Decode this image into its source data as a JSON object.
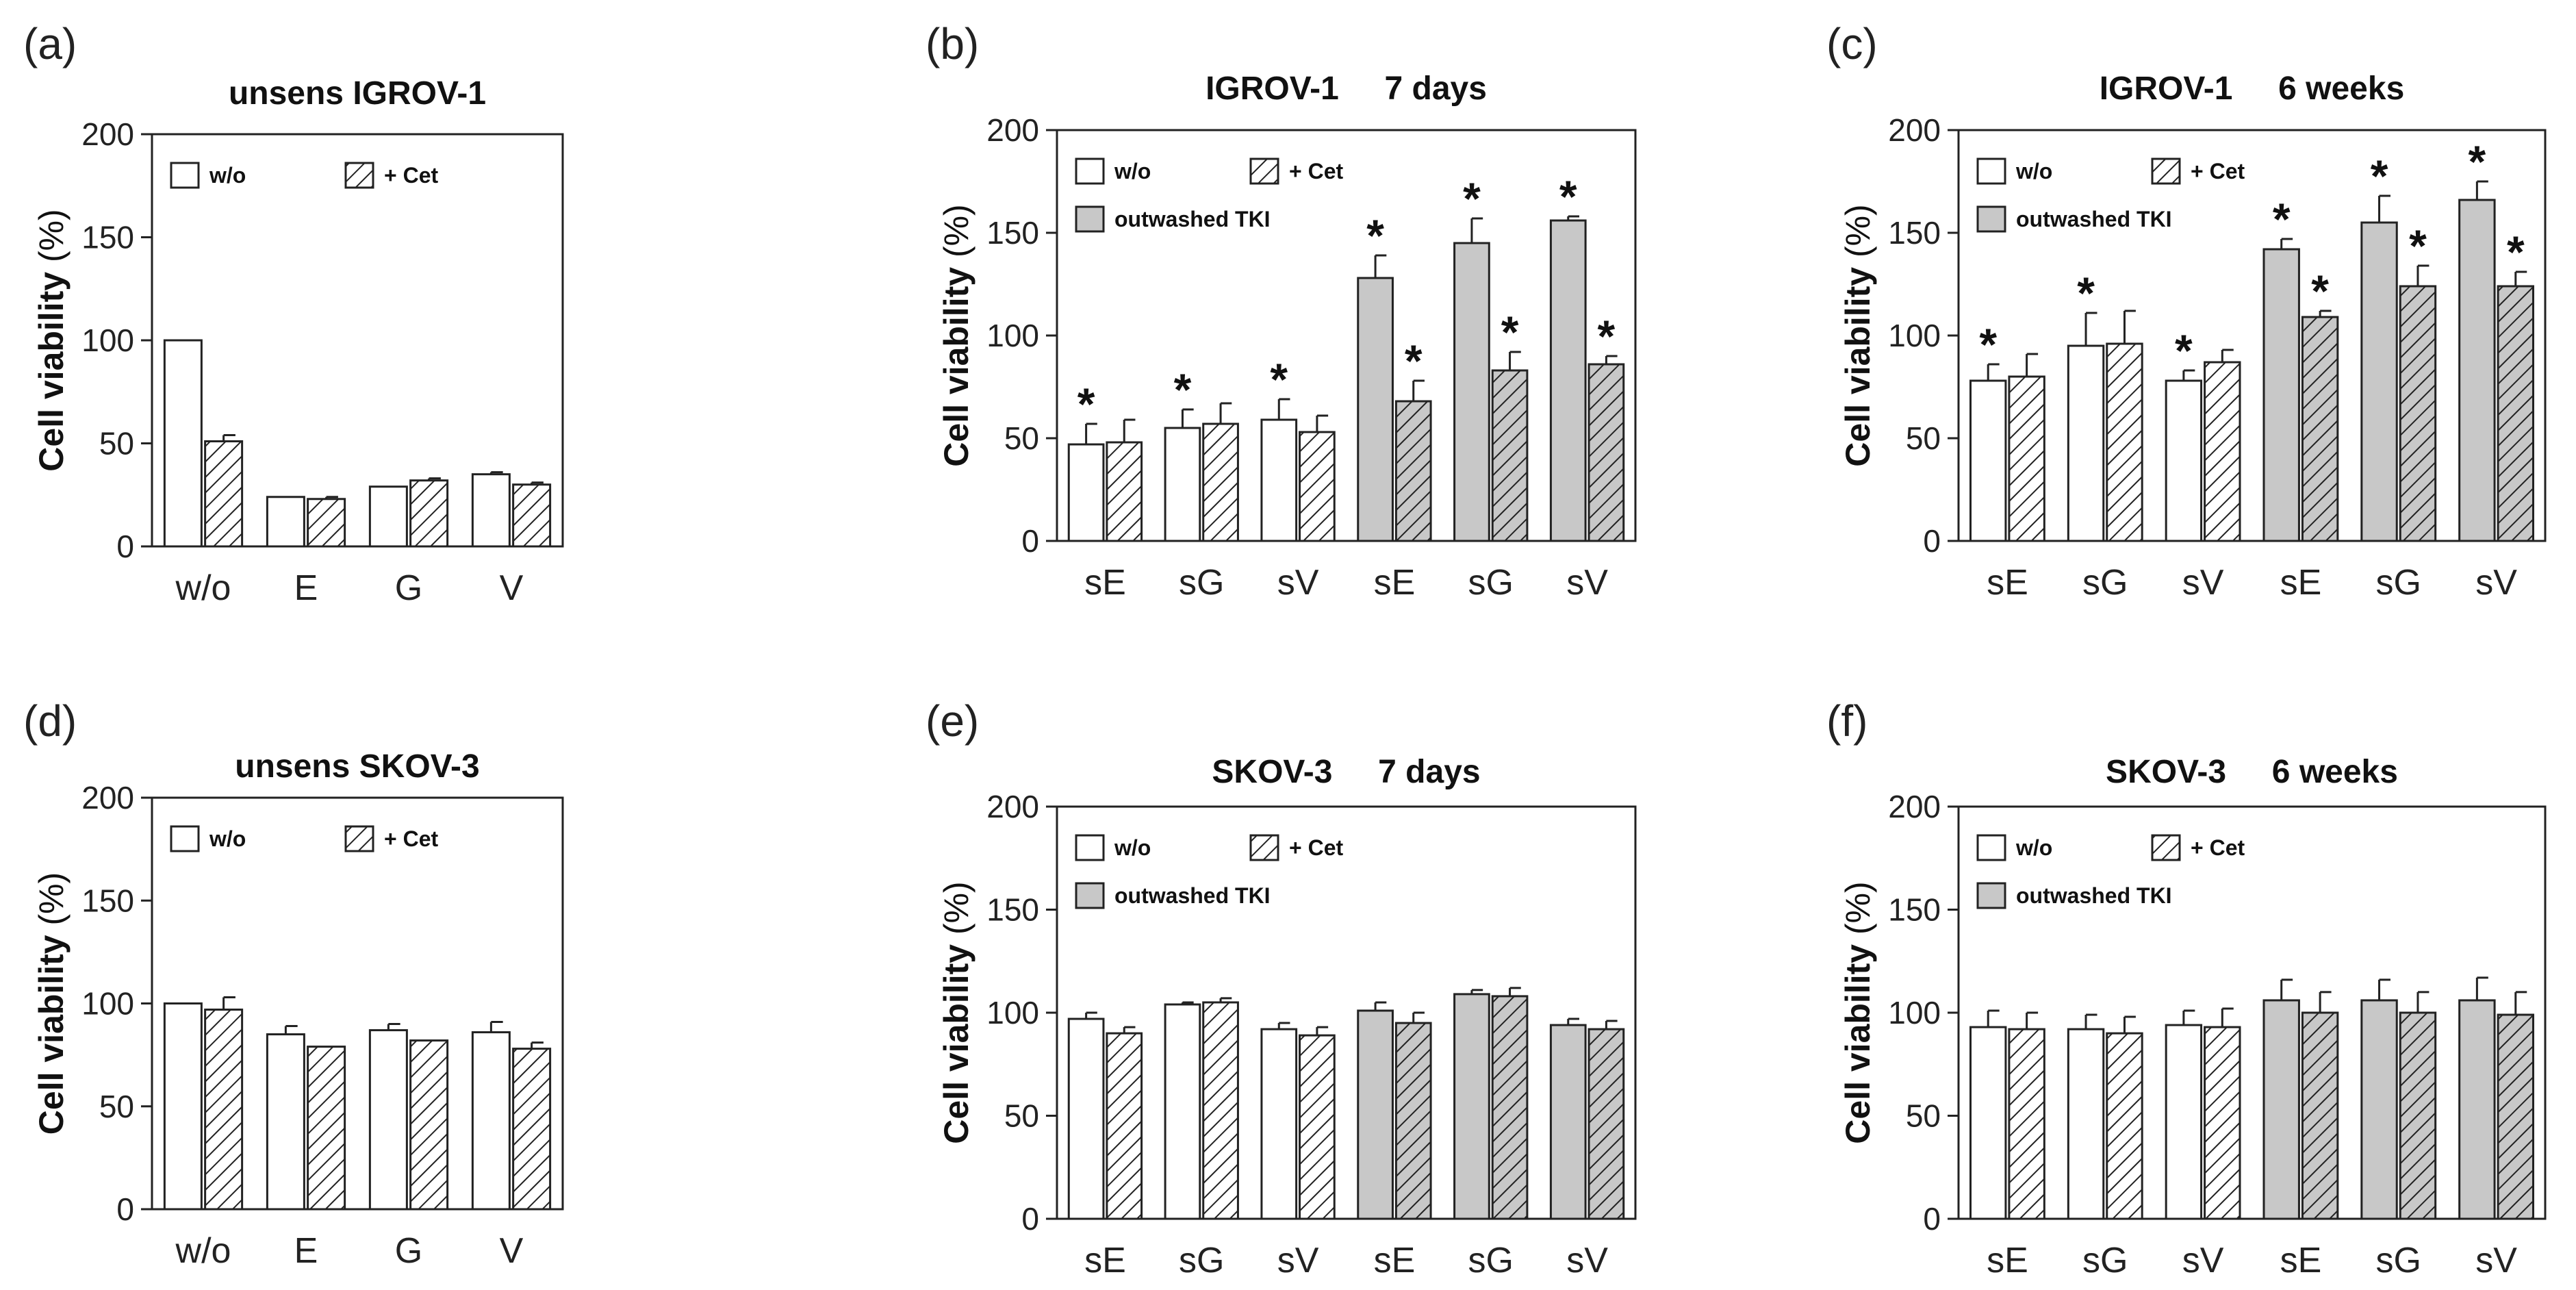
{
  "colors": {
    "outwashed_fill": "#c8c8c8",
    "stroke": "#222222",
    "open_fill": "#ffffff"
  },
  "chart_data": [
    {
      "panel": "(a)",
      "title": "unsens IGROV-1",
      "type": "bar",
      "ylabel": "Cell viability",
      "ylabel_unit": "(%)",
      "ylim": [
        0,
        200
      ],
      "yticks": [
        0,
        50,
        100,
        150,
        200
      ],
      "categories": [
        "w/o",
        "E",
        "G",
        "V"
      ],
      "legend": [
        "w/o",
        "+ Cet"
      ],
      "series": [
        {
          "name": "w/o",
          "values": [
            100,
            24,
            29,
            35
          ],
          "errors": [
            0,
            0,
            0,
            1
          ],
          "stars": [
            false,
            false,
            false,
            false
          ]
        },
        {
          "name": "+ Cet",
          "values": [
            51,
            23,
            32,
            30
          ],
          "errors": [
            3,
            1,
            1,
            1
          ],
          "stars": [
            false,
            false,
            false,
            false
          ]
        }
      ],
      "outwashed_from": 99
    },
    {
      "panel": "(b)",
      "title": "IGROV-1     7 days",
      "type": "bar",
      "ylabel": "Cell viability",
      "ylabel_unit": "(%)",
      "ylim": [
        0,
        200
      ],
      "yticks": [
        0,
        50,
        100,
        150,
        200
      ],
      "categories": [
        "sE",
        "sG",
        "sV",
        "sE",
        "sG",
        "sV"
      ],
      "legend": [
        "w/o",
        "+ Cet",
        "outwashed TKI"
      ],
      "series": [
        {
          "name": "w/o",
          "values": [
            47,
            55,
            59,
            128,
            145,
            156
          ],
          "errors": [
            10,
            9,
            10,
            11,
            12,
            2
          ],
          "stars": [
            true,
            true,
            true,
            true,
            true,
            true
          ]
        },
        {
          "name": "+ Cet",
          "values": [
            48,
            57,
            53,
            68,
            83,
            86
          ],
          "errors": [
            11,
            10,
            8,
            10,
            9,
            4
          ],
          "stars": [
            false,
            false,
            false,
            true,
            true,
            true
          ]
        }
      ],
      "outwashed_from": 3
    },
    {
      "panel": "(c)",
      "title": "IGROV-1     6 weeks",
      "type": "bar",
      "ylabel": "Cell viability",
      "ylabel_unit": "(%)",
      "ylim": [
        0,
        200
      ],
      "yticks": [
        0,
        50,
        100,
        150,
        200
      ],
      "categories": [
        "sE",
        "sG",
        "sV",
        "sE",
        "sG",
        "sV"
      ],
      "legend": [
        "w/o",
        "+ Cet",
        "outwashed TKI"
      ],
      "series": [
        {
          "name": "w/o",
          "values": [
            78,
            95,
            78,
            142,
            155,
            166
          ],
          "errors": [
            8,
            16,
            5,
            5,
            13,
            9
          ],
          "stars": [
            true,
            true,
            true,
            true,
            true,
            true
          ]
        },
        {
          "name": "+ Cet",
          "values": [
            80,
            96,
            87,
            109,
            124,
            124
          ],
          "errors": [
            11,
            16,
            6,
            3,
            10,
            7
          ],
          "stars": [
            false,
            false,
            false,
            true,
            true,
            true
          ]
        }
      ],
      "outwashed_from": 3
    },
    {
      "panel": "(d)",
      "title": "unsens SKOV-3",
      "type": "bar",
      "ylabel": "Cell viability",
      "ylabel_unit": "(%)",
      "ylim": [
        0,
        200
      ],
      "yticks": [
        0,
        50,
        100,
        150,
        200
      ],
      "categories": [
        "w/o",
        "E",
        "G",
        "V"
      ],
      "legend": [
        "w/o",
        "+ Cet"
      ],
      "series": [
        {
          "name": "w/o",
          "values": [
            100,
            85,
            87,
            86
          ],
          "errors": [
            0,
            4,
            3,
            5
          ],
          "stars": [
            false,
            false,
            false,
            false
          ]
        },
        {
          "name": "+ Cet",
          "values": [
            97,
            79,
            82,
            78
          ],
          "errors": [
            6,
            0,
            0,
            3
          ],
          "stars": [
            false,
            false,
            false,
            false
          ]
        }
      ],
      "outwashed_from": 99
    },
    {
      "panel": "(e)",
      "title": "SKOV-3     7 days",
      "type": "bar",
      "ylabel": "Cell viability",
      "ylabel_unit": "(%)",
      "ylim": [
        0,
        200
      ],
      "yticks": [
        0,
        50,
        100,
        150,
        200
      ],
      "categories": [
        "sE",
        "sG",
        "sV",
        "sE",
        "sG",
        "sV"
      ],
      "legend": [
        "w/o",
        "+ Cet",
        "outwashed TKI"
      ],
      "series": [
        {
          "name": "w/o",
          "values": [
            97,
            104,
            92,
            101,
            109,
            94
          ],
          "errors": [
            3,
            1,
            3,
            4,
            2,
            3
          ],
          "stars": [
            false,
            false,
            false,
            false,
            false,
            false
          ]
        },
        {
          "name": "+ Cet",
          "values": [
            90,
            105,
            89,
            95,
            108,
            92
          ],
          "errors": [
            3,
            2,
            4,
            5,
            4,
            4
          ],
          "stars": [
            false,
            false,
            false,
            false,
            false,
            false
          ]
        }
      ],
      "outwashed_from": 3
    },
    {
      "panel": "(f)",
      "title": "SKOV-3     6 weeks",
      "type": "bar",
      "ylabel": "Cell viability",
      "ylabel_unit": "(%)",
      "ylim": [
        0,
        200
      ],
      "yticks": [
        0,
        50,
        100,
        150,
        200
      ],
      "categories": [
        "sE",
        "sG",
        "sV",
        "sE",
        "sG",
        "sV"
      ],
      "legend": [
        "w/o",
        "+ Cet",
        "outwashed TKI"
      ],
      "series": [
        {
          "name": "w/o",
          "values": [
            93,
            92,
            94,
            106,
            106,
            106
          ],
          "errors": [
            8,
            7,
            7,
            10,
            10,
            11
          ],
          "stars": [
            false,
            false,
            false,
            false,
            false,
            false
          ]
        },
        {
          "name": "+ Cet",
          "values": [
            92,
            90,
            93,
            100,
            100,
            99
          ],
          "errors": [
            8,
            8,
            9,
            10,
            10,
            11
          ],
          "stars": [
            false,
            false,
            false,
            false,
            false,
            false
          ]
        }
      ],
      "outwashed_from": 3
    }
  ]
}
